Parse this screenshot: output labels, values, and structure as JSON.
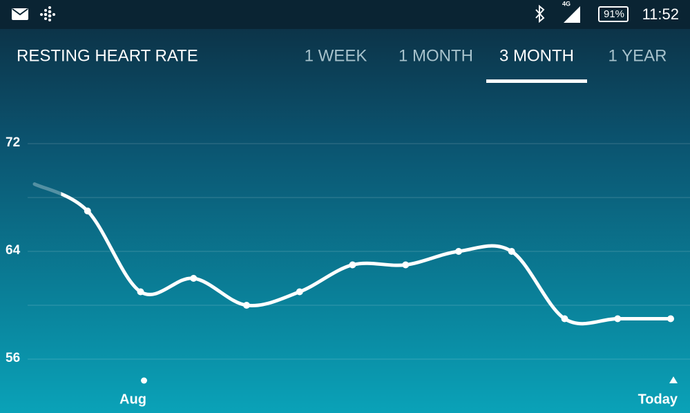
{
  "status_bar": {
    "network": "4G",
    "battery": "91%",
    "time": "11:52"
  },
  "header": {
    "title": "RESTING HEART RATE",
    "tabs": [
      "1 WEEK",
      "1 MONTH",
      "3 MONTH",
      "1 YEAR"
    ],
    "selected_tab": 2
  },
  "chart_data": {
    "type": "line",
    "categories": [
      null,
      null,
      "Aug",
      null,
      null,
      null,
      null,
      null,
      null,
      null,
      null,
      null,
      "Today"
    ],
    "values": [
      69,
      67,
      61,
      62,
      60,
      61,
      63,
      63,
      64,
      64,
      59,
      59,
      59
    ],
    "color": "#ffffff",
    "ylim": [
      54,
      75
    ],
    "yticks": [
      56,
      64,
      72
    ],
    "minor_yticks": [
      60,
      68
    ],
    "grid": true
  }
}
